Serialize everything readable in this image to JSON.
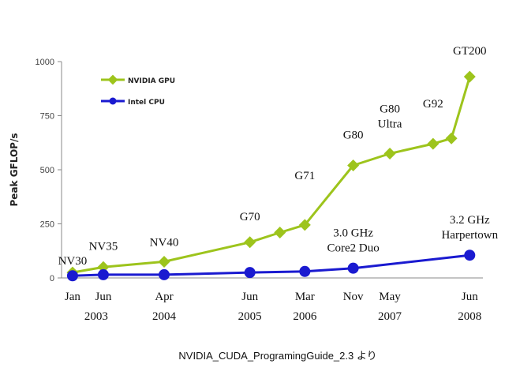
{
  "chart_data": {
    "type": "line",
    "ylabel": "Peak GFLOP/s",
    "ylim": [
      0,
      1000
    ],
    "yticks": [
      "0",
      "250",
      "500",
      "750",
      "1000"
    ],
    "x_ticks": [
      {
        "x": 2003.0,
        "month": "Jan",
        "year": "2003"
      },
      {
        "x": 2003.42,
        "month": "Jun",
        "year": ""
      },
      {
        "x": 2004.25,
        "month": "Apr",
        "year": "2004"
      },
      {
        "x": 2005.42,
        "month": "Jun",
        "year": "2005"
      },
      {
        "x": 2006.17,
        "month": "Mar",
        "year": "2006"
      },
      {
        "x": 2006.83,
        "month": "Nov",
        "year": ""
      },
      {
        "x": 2007.33,
        "month": "May",
        "year": "2007"
      },
      {
        "x": 2008.42,
        "month": "Jun",
        "year": "2008"
      }
    ],
    "xlim": [
      2002.85,
      2008.6
    ],
    "grid": false,
    "legend_position": "top-left",
    "series": [
      {
        "name": "NVIDIA GPU",
        "color": "#9dc41c",
        "marker": "diamond",
        "points": [
          {
            "x": 2003.0,
            "y": 25
          },
          {
            "x": 2003.42,
            "y": 50
          },
          {
            "x": 2004.25,
            "y": 75
          },
          {
            "x": 2005.42,
            "y": 165
          },
          {
            "x": 2005.83,
            "y": 210
          },
          {
            "x": 2006.17,
            "y": 245
          },
          {
            "x": 2006.83,
            "y": 520
          },
          {
            "x": 2007.33,
            "y": 575
          },
          {
            "x": 2007.92,
            "y": 620
          },
          {
            "x": 2008.17,
            "y": 645
          },
          {
            "x": 2008.42,
            "y": 930
          }
        ]
      },
      {
        "name": "Intel CPU",
        "color": "#1a1ad0",
        "marker": "circle",
        "points": [
          {
            "x": 2003.0,
            "y": 10
          },
          {
            "x": 2003.42,
            "y": 15
          },
          {
            "x": 2004.25,
            "y": 15
          },
          {
            "x": 2005.42,
            "y": 25
          },
          {
            "x": 2006.17,
            "y": 30
          },
          {
            "x": 2006.83,
            "y": 45
          },
          {
            "x": 2008.42,
            "y": 105
          }
        ]
      }
    ],
    "annotations": [
      {
        "lines": [
          "NV30"
        ],
        "x": 2003.0,
        "y": 25
      },
      {
        "lines": [
          "NV35"
        ],
        "x": 2003.42,
        "y": 50
      },
      {
        "lines": [
          "NV40"
        ],
        "x": 2004.25,
        "y": 75
      },
      {
        "lines": [
          "G70"
        ],
        "x": 2005.42,
        "y": 165
      },
      {
        "lines": [
          "G71"
        ],
        "x": 2006.17,
        "y": 245
      },
      {
        "lines": [
          "G80"
        ],
        "x": 2006.83,
        "y": 520
      },
      {
        "lines": [
          "G80",
          "Ultra"
        ],
        "x": 2007.33,
        "y": 575
      },
      {
        "lines": [
          "G92"
        ],
        "x": 2007.92,
        "y": 620
      },
      {
        "lines": [
          "GT200"
        ],
        "x": 2008.42,
        "y": 930
      },
      {
        "lines": [
          "3.0 GHz",
          "Core2 Duo"
        ],
        "x": 2006.83,
        "y": 45
      },
      {
        "lines": [
          "3.2 GHz",
          "Harpertown"
        ],
        "x": 2008.42,
        "y": 105
      }
    ]
  },
  "source_note": "NVIDIA_CUDA_ProgramingGuide_2.3 より"
}
